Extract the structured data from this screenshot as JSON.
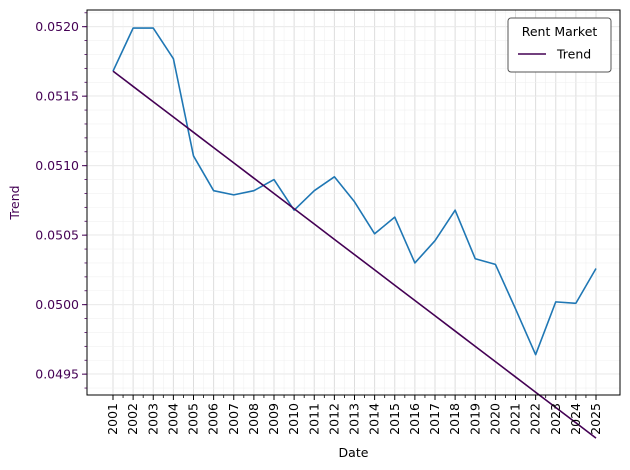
{
  "chart_data": {
    "type": "line",
    "title": "",
    "xlabel": "Date",
    "ylabel": "Trend",
    "x": [
      "2001",
      "2002",
      "2003",
      "2004",
      "2005",
      "2006",
      "2007",
      "2008",
      "2009",
      "2010",
      "2011",
      "2012",
      "2013",
      "2014",
      "2015",
      "2016",
      "2017",
      "2018",
      "2019",
      "2020",
      "2021",
      "2022",
      "2023",
      "2024",
      "2025"
    ],
    "series": [
      {
        "name": "",
        "color": "#1f77b4",
        "values": [
          0.05168,
          0.05199,
          0.05199,
          0.05177,
          0.05107,
          0.05082,
          0.05079,
          0.05082,
          0.0509,
          0.05068,
          0.05082,
          0.05092,
          0.05074,
          0.05051,
          0.05063,
          0.0503,
          0.05046,
          0.05068,
          0.05033,
          0.05029,
          0.04997,
          0.04964,
          0.05002,
          0.05001,
          0.05026
        ]
      },
      {
        "name": "Trend",
        "color": "#440154",
        "values": [
          0.05168,
          0.05157,
          0.05146,
          0.05135,
          0.05124,
          0.05113,
          0.05102,
          0.05091,
          0.0508,
          0.05069,
          0.05058,
          0.05047,
          0.05036,
          0.05025,
          0.05014,
          0.05003,
          0.04992,
          0.04981,
          0.0497,
          0.04959,
          0.04948,
          0.04937,
          0.04926,
          0.04915,
          0.04904
        ]
      }
    ],
    "ylim": [
      0.04935,
      0.05212
    ],
    "yticks": [
      "0.0495",
      "0.0500",
      "0.0505",
      "0.0510",
      "0.0515",
      "0.0520"
    ],
    "ytick_color": "#440154",
    "grid": true,
    "legend": {
      "title": "Rent Market",
      "placement": "top-right",
      "entries": [
        "Trend"
      ]
    }
  }
}
